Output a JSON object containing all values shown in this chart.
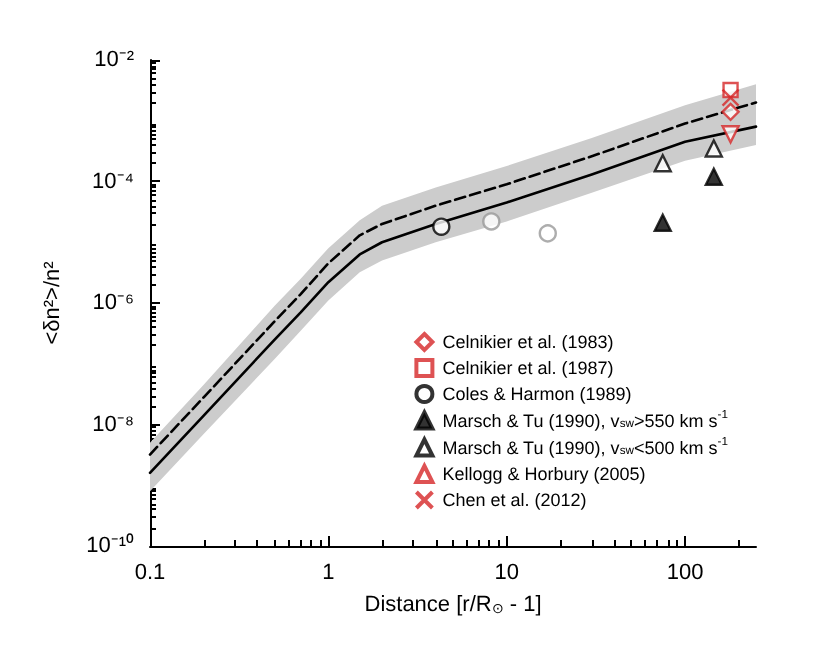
{
  "chart_data": {
    "type": "scatter",
    "xlabel": "Distance [r/R$_{⊙}$ - 1]",
    "ylabel": "<δn²>/n²",
    "log": "xy",
    "legend": "bottom right",
    "xlim": [
      0.1,
      250
    ],
    "xticks": [
      0.1,
      1,
      10,
      100
    ],
    "ylim": [
      1e-10,
      0.01
    ],
    "yticks": [
      {
        "value": 1e-10,
        "label": "10⁻¹⁰"
      },
      {
        "value": 1e-08,
        "label": "10⁻⁸"
      },
      {
        "value": 1e-06,
        "label": "10⁻⁶"
      },
      {
        "value": 0.0001,
        "label": "10⁻⁴"
      },
      {
        "value": 0.01,
        "label": "10⁻²"
      }
    ],
    "series": [
      {
        "type": "line",
        "color": "#000000",
        "line_style": "solid",
        "marker": "none",
        "x": [
          0.1,
          0.2,
          0.5,
          0.7,
          1,
          1.5,
          2,
          4,
          10,
          30,
          100,
          250
        ],
        "values": [
          1.6e-09,
          1.4e-08,
          2.5e-07,
          7e-07,
          2.2e-06,
          6.3e-06,
          1e-05,
          2e-05,
          4.5e-05,
          0.00013,
          0.00045,
          0.0008
        ],
        "lower": [
          8e-10,
          7e-09,
          1.2e-07,
          3.5e-07,
          1.1e-06,
          3.2e-06,
          5e-06,
          1e-05,
          2.2e-05,
          6.5e-05,
          0.00022,
          0.0004
        ],
        "upper": [
          5e-09,
          4.5e-08,
          9e-07,
          2.5e-06,
          8e-06,
          2.3e-05,
          4e-05,
          8e-05,
          0.00018,
          0.00052,
          0.0018,
          0.004
        ]
      },
      {
        "type": "line",
        "color": "#000000",
        "line_style": "dashed",
        "marker": "none",
        "x": [
          0.1,
          0.2,
          0.5,
          0.7,
          1,
          1.5,
          2,
          4,
          10,
          30,
          100,
          250
        ],
        "values": [
          3.2e-09,
          2.8e-08,
          5e-07,
          1.4e-06,
          4.5e-06,
          1.3e-05,
          2e-05,
          4e-05,
          9e-05,
          0.00026,
          0.0009,
          0.002
        ]
      },
      {
        "name": "Celnikier et al. (1983)",
        "marker": "diamond",
        "color": "#d62728",
        "x": [
          180
        ],
        "values": [
          0.0014
        ]
      },
      {
        "name": "Celnikier et al. (1987)",
        "marker": "square",
        "color": "#d62728",
        "x": [
          180
        ],
        "values": [
          0.0032
        ]
      },
      {
        "name": "Coles & Harmon (1989)",
        "marker": "circle",
        "color": "#000000",
        "colors": [
          "#000000",
          "#999999",
          "#999999"
        ],
        "x": [
          4.3,
          8.2,
          17
        ],
        "values": [
          1.8e-05,
          2.2e-05,
          1.4e-05
        ]
      },
      {
        "name": "Marsch & Tu (1990), v$_{sw}$>550 km s$^{-1}$",
        "marker": "triangle_filled",
        "color": "#000000",
        "x": [
          75,
          145
        ],
        "values": [
          2.1e-05,
          0.00012
        ]
      },
      {
        "name": "Marsch & Tu (1990), v$_{sw}$<500 km s$^{-1}$",
        "marker": "triangle",
        "color": "#000000",
        "x": [
          75,
          145
        ],
        "values": [
          0.0002,
          0.00035
        ]
      },
      {
        "name": "Kellogg & Horbury (2005)",
        "marker": "triangle_down",
        "color": "#d62728",
        "x": [
          180
        ],
        "values": [
          0.0006
        ]
      },
      {
        "name": "Chen et al. (2012)",
        "marker": "cross",
        "color": "#d62728",
        "x": [
          180
        ],
        "values": [
          0.0024
        ]
      }
    ]
  }
}
